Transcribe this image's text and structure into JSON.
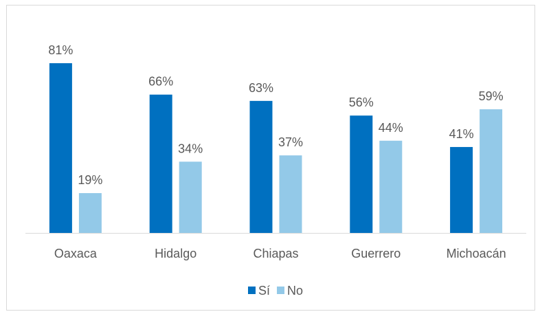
{
  "chart_data": {
    "type": "bar",
    "categories": [
      "Oaxaca",
      "Hidalgo",
      "Chiapas",
      "Guerrero",
      "Michoacán"
    ],
    "series": [
      {
        "name": "Sí",
        "values": [
          81,
          66,
          63,
          56,
          41
        ],
        "color": "#0070c0"
      },
      {
        "name": "No",
        "values": [
          19,
          34,
          37,
          44,
          59
        ],
        "color": "#93c9e8"
      }
    ],
    "value_suffix": "%",
    "ylim": [
      0,
      100
    ],
    "grid": false,
    "legend": "bottom-center",
    "axis_color": "#d9d9d9",
    "text_color": "#595959"
  }
}
